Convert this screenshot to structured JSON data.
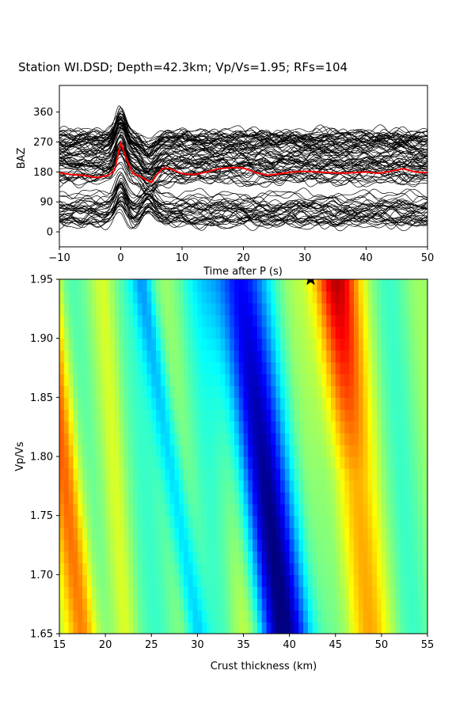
{
  "chart_data": [
    {
      "type": "line",
      "title": "Station WI.DSD; Depth=42.3km; Vp/Vs=1.95; RFs=104",
      "xlabel": "Time after P (s)",
      "ylabel": "BAZ",
      "xlim": [
        -10,
        50
      ],
      "ylim": [
        -45,
        440
      ],
      "xticks": [
        -10,
        0,
        10,
        20,
        30,
        40,
        50
      ],
      "xtick_labels": [
        "−10",
        "0",
        "10",
        "20",
        "30",
        "40",
        "50"
      ],
      "yticks": [
        0,
        90,
        180,
        270,
        360
      ],
      "ytick_labels": [
        "0",
        "90",
        "180",
        "270",
        "360"
      ],
      "trace_color": "#000000",
      "stack_color": "#ff0000",
      "trace_count": 104,
      "stack_series": {
        "name": "",
        "x": [
          -10,
          -8,
          -6,
          -4,
          -2,
          -1,
          0,
          1,
          2,
          3,
          4,
          5,
          6,
          7,
          8,
          9,
          10,
          12,
          14,
          16,
          18,
          20,
          22,
          24,
          26,
          28,
          30,
          32,
          34,
          36,
          38,
          40,
          42,
          44,
          46,
          48,
          50
        ],
        "y": [
          178,
          172,
          170,
          163,
          170,
          185,
          268,
          215,
          175,
          168,
          158,
          148,
          175,
          192,
          190,
          182,
          175,
          172,
          180,
          190,
          193,
          192,
          178,
          170,
          175,
          180,
          182,
          180,
          178,
          176,
          178,
          180,
          176,
          182,
          190,
          180,
          178
        ]
      }
    },
    {
      "type": "heatmap",
      "xlabel": "Crust thickness (km)",
      "ylabel": "Vp/Vs",
      "xlim": [
        15,
        55
      ],
      "ylim": [
        1.65,
        1.95
      ],
      "xticks": [
        15,
        20,
        25,
        30,
        35,
        40,
        45,
        50,
        55
      ],
      "xtick_labels": [
        "15",
        "20",
        "25",
        "30",
        "35",
        "40",
        "45",
        "50",
        "55"
      ],
      "yticks": [
        1.65,
        1.7,
        1.75,
        1.8,
        1.85,
        1.9,
        1.95
      ],
      "ytick_labels": [
        "1.65",
        "1.70",
        "1.75",
        "1.80",
        "1.85",
        "1.90",
        "1.95"
      ],
      "colormap": "jet",
      "best_fit": {
        "thickness_km": 42.3,
        "vpvs": 1.95
      }
    }
  ]
}
